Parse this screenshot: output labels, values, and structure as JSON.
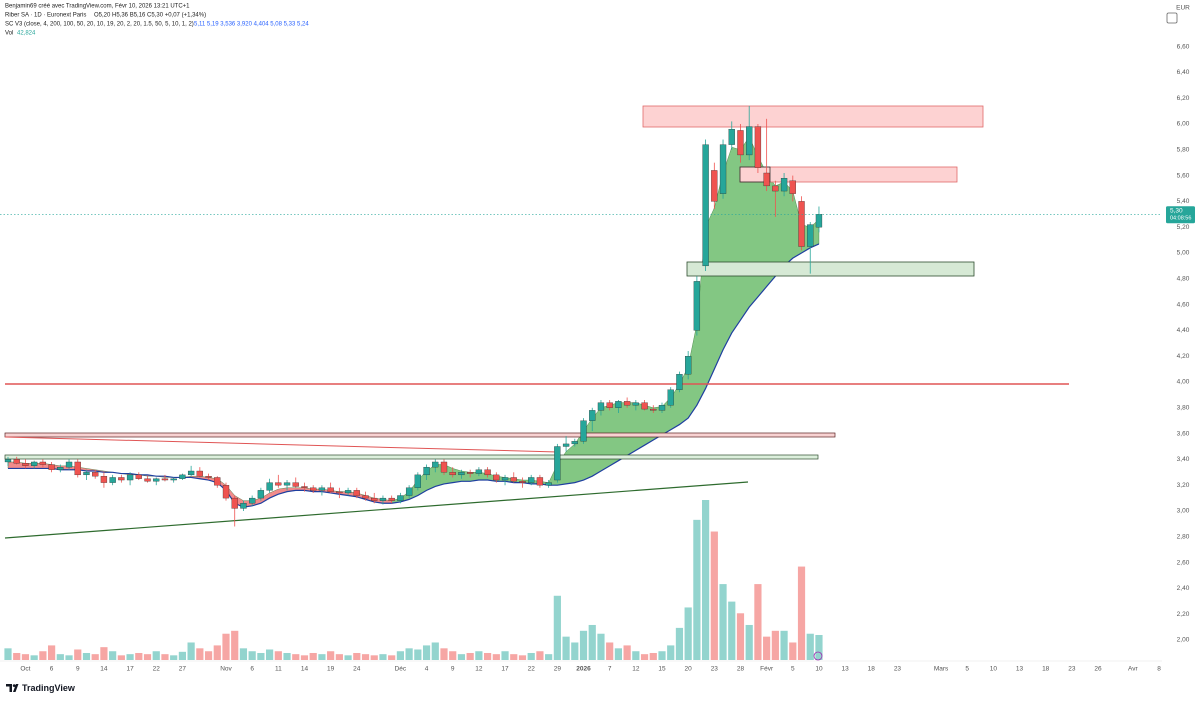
{
  "header": {
    "author": "Benjamin69 créé avec TradingView.com, Févr 10, 2026 13:21 UTC+1",
    "symbol": "Riber SA · 1D · Euronext Paris",
    "quote": "O5,20  H5,36  B5,16  C5,30  +0,07 (+1,34%)",
    "indicator": "SC V3 (close, 4, 200, 100, 50, 20, 10, 19, 20, 2, 20, 1.5, 50, 5, 10, 1, 2)",
    "indicator_values": "5,11  5,19  3,536  3,920  4,404  5,08  5,33  5,24",
    "volume_name": "Vol",
    "volume_value": "42,824"
  },
  "logo": "TradingView",
  "chart_data": {
    "type": "candlestick",
    "categories": [
      null,
      null,
      "Oct",
      null,
      null,
      "6",
      null,
      null,
      "9",
      null,
      null,
      "14",
      null,
      null,
      "17",
      null,
      null,
      "22",
      null,
      null,
      "27",
      null,
      null,
      null,
      null,
      "Nov",
      null,
      null,
      "6",
      null,
      null,
      "11",
      null,
      null,
      "14",
      null,
      null,
      "19",
      null,
      null,
      "24",
      null,
      null,
      null,
      null,
      "Déc",
      null,
      null,
      "4",
      null,
      null,
      "9",
      null,
      null,
      "12",
      null,
      null,
      "17",
      null,
      null,
      "22",
      null,
      null,
      "29",
      null,
      null,
      "2026",
      null,
      null,
      "7",
      null,
      null,
      "12",
      null,
      null,
      "15",
      null,
      null,
      "20",
      null,
      null,
      "23",
      null,
      null,
      "28",
      null,
      null,
      "Févr",
      null,
      null,
      "5",
      null,
      null,
      "10"
    ],
    "future_categories": [
      null,
      null,
      "13",
      null,
      null,
      "18",
      null,
      null,
      "23",
      null,
      null,
      null,
      null,
      "Mars",
      null,
      null,
      "5",
      null,
      null,
      "10",
      null,
      null,
      "13",
      null,
      null,
      "18",
      null,
      null,
      "23",
      null,
      null,
      "26",
      null,
      null,
      null,
      "Avr",
      null,
      null,
      "8"
    ],
    "open": [
      3.38,
      3.4,
      3.37,
      3.35,
      3.38,
      3.36,
      3.32,
      3.34,
      3.38,
      3.28,
      3.3,
      3.27,
      3.22,
      3.26,
      3.24,
      3.28,
      3.25,
      3.23,
      3.25,
      3.24,
      3.25,
      3.28,
      3.31,
      3.27,
      3.26,
      3.2,
      3.1,
      3.02,
      3.06,
      3.1,
      3.16,
      3.22,
      3.2,
      3.22,
      3.19,
      3.18,
      3.16,
      3.18,
      3.15,
      3.14,
      3.16,
      3.12,
      3.1,
      3.08,
      3.1,
      3.08,
      3.12,
      3.18,
      3.28,
      3.34,
      3.38,
      3.3,
      3.28,
      3.3,
      3.29,
      3.32,
      3.28,
      3.24,
      3.26,
      3.23,
      3.22,
      3.26,
      3.2,
      3.24,
      3.5,
      3.52,
      3.54,
      3.7,
      3.78,
      3.84,
      3.8,
      3.85,
      3.82,
      3.84,
      3.79,
      3.78,
      3.82,
      3.94,
      4.06,
      4.4,
      4.9,
      5.64,
      5.46,
      5.84,
      5.95,
      5.76,
      5.98,
      5.62,
      5.52,
      5.48,
      5.56,
      5.4,
      5.05,
      5.2
    ],
    "high": [
      3.42,
      3.42,
      3.4,
      3.39,
      3.4,
      3.38,
      3.36,
      3.4,
      3.4,
      3.32,
      3.32,
      3.3,
      3.28,
      3.28,
      3.3,
      3.3,
      3.27,
      3.26,
      3.28,
      3.26,
      3.29,
      3.35,
      3.34,
      3.29,
      3.27,
      3.22,
      3.12,
      3.08,
      3.12,
      3.18,
      3.25,
      3.28,
      3.24,
      3.26,
      3.22,
      3.2,
      3.2,
      3.22,
      3.18,
      3.18,
      3.18,
      3.15,
      3.14,
      3.12,
      3.12,
      3.14,
      3.2,
      3.3,
      3.36,
      3.4,
      3.4,
      3.34,
      3.32,
      3.32,
      3.34,
      3.34,
      3.3,
      3.28,
      3.3,
      3.26,
      3.28,
      3.28,
      3.24,
      3.52,
      3.58,
      3.56,
      3.72,
      3.8,
      3.86,
      3.86,
      3.86,
      3.88,
      3.86,
      3.86,
      3.82,
      3.84,
      3.96,
      4.08,
      4.24,
      4.82,
      5.88,
      5.7,
      5.88,
      6.02,
      6.0,
      6.14,
      6.0,
      6.04,
      5.56,
      5.62,
      5.6,
      5.44,
      5.24,
      5.36
    ],
    "low": [
      3.35,
      3.36,
      3.33,
      3.33,
      3.34,
      3.3,
      3.3,
      3.32,
      3.26,
      3.24,
      3.25,
      3.18,
      3.2,
      3.22,
      3.2,
      3.24,
      3.22,
      3.2,
      3.23,
      3.22,
      3.24,
      3.27,
      3.26,
      3.24,
      3.18,
      3.08,
      2.88,
      3.0,
      3.04,
      3.08,
      3.14,
      3.18,
      3.16,
      3.18,
      3.15,
      3.14,
      3.12,
      3.14,
      3.1,
      3.12,
      3.1,
      3.08,
      3.06,
      3.05,
      3.06,
      3.06,
      3.1,
      3.16,
      3.24,
      3.3,
      3.28,
      3.26,
      3.25,
      3.26,
      3.27,
      3.26,
      3.22,
      3.2,
      3.22,
      3.18,
      3.2,
      3.18,
      3.18,
      3.22,
      3.46,
      3.5,
      3.52,
      3.62,
      3.74,
      3.78,
      3.76,
      3.8,
      3.78,
      3.78,
      3.76,
      3.76,
      3.8,
      3.92,
      4.02,
      4.36,
      4.86,
      5.34,
      5.42,
      5.8,
      5.7,
      5.72,
      5.62,
      5.48,
      5.28,
      5.44,
      5.4,
      5.02,
      4.84,
      5.16
    ],
    "close": [
      3.4,
      3.37,
      3.35,
      3.38,
      3.36,
      3.32,
      3.34,
      3.38,
      3.28,
      3.3,
      3.27,
      3.22,
      3.26,
      3.24,
      3.28,
      3.25,
      3.23,
      3.25,
      3.24,
      3.25,
      3.28,
      3.31,
      3.27,
      3.26,
      3.2,
      3.1,
      3.02,
      3.06,
      3.1,
      3.16,
      3.22,
      3.2,
      3.22,
      3.19,
      3.18,
      3.16,
      3.18,
      3.15,
      3.14,
      3.16,
      3.12,
      3.1,
      3.08,
      3.1,
      3.08,
      3.12,
      3.18,
      3.28,
      3.34,
      3.38,
      3.3,
      3.28,
      3.3,
      3.29,
      3.32,
      3.28,
      3.24,
      3.26,
      3.23,
      3.22,
      3.26,
      3.2,
      3.22,
      3.5,
      3.52,
      3.54,
      3.7,
      3.78,
      3.84,
      3.8,
      3.85,
      3.82,
      3.84,
      3.79,
      3.78,
      3.82,
      3.94,
      4.06,
      4.2,
      4.78,
      5.84,
      5.4,
      5.84,
      5.96,
      5.76,
      5.98,
      5.66,
      5.52,
      5.48,
      5.58,
      5.46,
      5.05,
      5.22,
      5.3
    ],
    "volume": [
      20000,
      12000,
      10000,
      8000,
      15000,
      25000,
      10000,
      8000,
      18000,
      12000,
      10000,
      22000,
      15000,
      8000,
      10000,
      12000,
      10000,
      15000,
      10000,
      8000,
      14000,
      30000,
      20000,
      15000,
      25000,
      45000,
      50000,
      20000,
      15000,
      12000,
      18000,
      15000,
      12000,
      10000,
      8000,
      12000,
      10000,
      15000,
      10000,
      8000,
      12000,
      10000,
      8000,
      10000,
      8000,
      15000,
      20000,
      18000,
      25000,
      30000,
      20000,
      15000,
      10000,
      12000,
      15000,
      12000,
      10000,
      15000,
      10000,
      8000,
      12000,
      15000,
      10000,
      110000,
      40000,
      30000,
      50000,
      60000,
      45000,
      30000,
      20000,
      25000,
      15000,
      10000,
      12000,
      15000,
      25000,
      55000,
      90000,
      240000,
      274000,
      220000,
      130000,
      100000,
      80000,
      60000,
      130000,
      40000,
      50000,
      50000,
      30000,
      160000,
      45000,
      42824
    ],
    "vol_ylim": [
      0,
      342500
    ],
    "cloud_lower": [
      3.33,
      3.33,
      3.33,
      3.33,
      3.33,
      3.33,
      3.32,
      3.32,
      3.32,
      3.31,
      3.31,
      3.3,
      3.3,
      3.29,
      3.29,
      3.28,
      3.28,
      3.27,
      3.27,
      3.26,
      3.26,
      3.26,
      3.25,
      3.24,
      3.22,
      3.16,
      3.06,
      3.03,
      3.04,
      3.06,
      3.1,
      3.13,
      3.15,
      3.16,
      3.16,
      3.15,
      3.15,
      3.14,
      3.13,
      3.12,
      3.11,
      3.09,
      3.07,
      3.06,
      3.06,
      3.07,
      3.09,
      3.12,
      3.16,
      3.19,
      3.21,
      3.22,
      3.23,
      3.23,
      3.24,
      3.24,
      3.23,
      3.23,
      3.22,
      3.22,
      3.21,
      3.21,
      3.2,
      3.2,
      3.21,
      3.22,
      3.24,
      3.27,
      3.31,
      3.35,
      3.39,
      3.43,
      3.47,
      3.51,
      3.55,
      3.59,
      3.63,
      3.67,
      3.72,
      3.82,
      3.95,
      4.1,
      4.25,
      4.38,
      4.48,
      4.58,
      4.66,
      4.74,
      4.82,
      4.9,
      4.96,
      5.0,
      5.04,
      5.07
    ],
    "cloud_upper_bear": [
      3.38,
      3.38,
      3.37,
      3.37,
      3.37,
      3.36,
      3.35,
      3.35,
      3.34,
      3.33,
      3.32,
      3.31,
      3.3,
      3.29,
      3.28,
      3.28,
      3.27,
      3.27,
      3.26,
      3.26,
      3.26,
      3.27,
      3.27,
      3.26,
      3.25,
      3.2,
      3.12,
      3.08,
      3.08,
      3.1,
      3.14,
      3.17,
      3.18,
      3.18,
      3.18,
      3.17,
      3.17,
      3.16,
      3.15,
      3.15,
      3.14,
      3.12,
      3.1,
      3.09,
      3.08,
      null,
      null,
      null,
      null,
      null,
      null,
      null,
      null,
      null,
      null,
      null,
      null,
      null,
      null,
      null,
      null,
      null,
      null,
      null,
      null,
      null,
      null,
      null,
      null,
      null,
      null,
      null,
      null,
      null,
      null,
      null,
      null,
      null,
      null,
      null,
      null,
      null,
      null,
      null,
      null,
      null,
      null,
      null,
      null,
      null,
      null,
      null,
      null,
      null
    ],
    "cloud_upper_bull": [
      null,
      null,
      null,
      null,
      null,
      null,
      null,
      null,
      null,
      null,
      null,
      null,
      null,
      null,
      null,
      null,
      null,
      null,
      null,
      null,
      null,
      null,
      null,
      null,
      null,
      null,
      null,
      null,
      null,
      null,
      null,
      null,
      null,
      null,
      null,
      null,
      null,
      null,
      null,
      null,
      null,
      null,
      null,
      null,
      3.08,
      3.1,
      3.15,
      3.24,
      3.31,
      3.36,
      3.36,
      3.33,
      3.31,
      3.3,
      3.3,
      3.29,
      3.27,
      3.26,
      3.25,
      3.24,
      3.24,
      3.23,
      3.22,
      3.36,
      3.46,
      3.52,
      3.62,
      3.72,
      3.8,
      3.82,
      3.84,
      3.84,
      3.84,
      3.82,
      3.8,
      3.81,
      3.88,
      3.98,
      4.12,
      4.45,
      5.2,
      5.35,
      5.62,
      5.82,
      5.8,
      5.9,
      5.75,
      5.62,
      5.52,
      5.55,
      5.48,
      5.22,
      5.2,
      5.26
    ],
    "up_color": "#26a69a",
    "down_color": "#ef5350",
    "volume_up_color": "#93d4ce",
    "volume_down_color": "#f6a6a4",
    "bull_cloud_color": "#7cc47c",
    "bear_cloud_color": "#f08585",
    "cloud_lower_color": "#1f3fa0",
    "ylim": [
      1.845,
      6.961
    ],
    "yticks": [
      {
        "value": 2.0,
        "label": "2,00"
      },
      {
        "value": 2.2,
        "label": "2,20"
      },
      {
        "value": 2.4,
        "label": "2,40"
      },
      {
        "value": 2.6,
        "label": "2,60"
      },
      {
        "value": 2.8,
        "label": "2,80"
      },
      {
        "value": 3.0,
        "label": "3,00"
      },
      {
        "value": 3.2,
        "label": "3,20"
      },
      {
        "value": 3.4,
        "label": "3,40"
      },
      {
        "value": 3.6,
        "label": "3,60"
      },
      {
        "value": 3.8,
        "label": "3,80"
      },
      {
        "value": 4.0,
        "label": "4,00"
      },
      {
        "value": 4.2,
        "label": "4,20"
      },
      {
        "value": 4.4,
        "label": "4,40"
      },
      {
        "value": 4.6,
        "label": "4,60"
      },
      {
        "value": 4.8,
        "label": "4,80"
      },
      {
        "value": 5.0,
        "label": "5,00"
      },
      {
        "value": 5.2,
        "label": "5,20"
      },
      {
        "value": 5.4,
        "label": "5,40"
      },
      {
        "value": 5.6,
        "label": "5,60"
      },
      {
        "value": 5.8,
        "label": "5,80"
      },
      {
        "value": 6.0,
        "label": "6,00"
      },
      {
        "value": 6.2,
        "label": "6,20"
      },
      {
        "value": 6.4,
        "label": "6,40"
      },
      {
        "value": 6.6,
        "label": "6,60"
      }
    ],
    "grid": false,
    "currency": "EUR",
    "last_price": {
      "value": 5.3,
      "label": "5,30"
    },
    "countdown": "04:08:56"
  }
}
